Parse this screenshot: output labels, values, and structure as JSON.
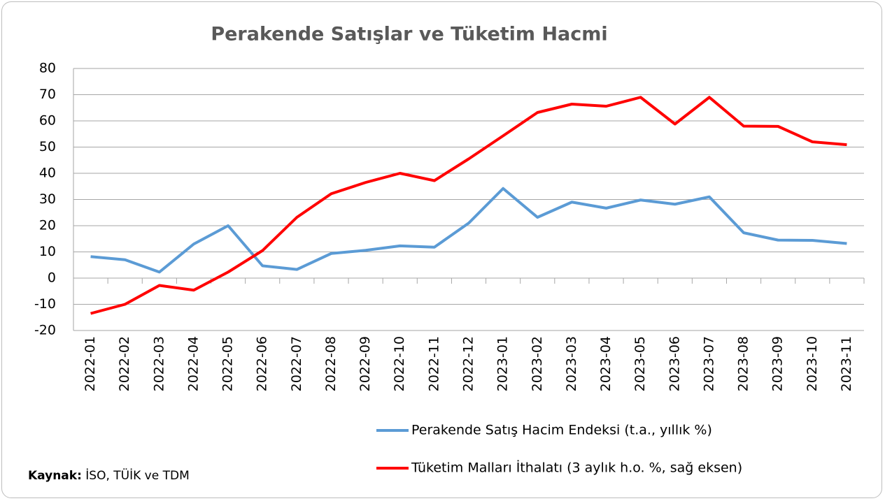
{
  "chart_data": {
    "type": "line",
    "title": "Perakende Satışlar ve Tüketim Hacmi",
    "categories": [
      "2022-01",
      "2022-02",
      "2022-03",
      "2022-04",
      "2022-05",
      "2022-06",
      "2022-07",
      "2022-08",
      "2022-09",
      "2022-10",
      "2022-11",
      "2022-12",
      "2023-01",
      "2023-02",
      "2023-03",
      "2023-04",
      "2023-05",
      "2023-06",
      "2023-07",
      "2023-08",
      "2023-09",
      "2023-10",
      "2023-11"
    ],
    "series": [
      {
        "name": "Perakende Satış Hacim Endeksi (t.a., yıllık %)",
        "color": "#5b9bd5",
        "values": [
          8.2,
          7,
          2.3,
          13,
          20,
          4.7,
          3.3,
          9.4,
          10.6,
          12.3,
          11.8,
          21,
          34.2,
          23.2,
          29,
          26.7,
          29.8,
          28.2,
          31,
          17.3,
          14.5,
          14.4,
          13.2
        ]
      },
      {
        "name": "Tüketim Malları İthalatı (3 aylık h.o. %, sağ eksen)",
        "color": "#ff0000",
        "values": [
          -13.5,
          -10,
          -2.8,
          -4.6,
          2.3,
          10.5,
          23.2,
          32.2,
          36.5,
          40,
          37.2,
          45.5,
          54.3,
          63.2,
          66.4,
          65.6,
          69,
          58.8,
          69,
          58,
          57.9,
          52,
          50.9
        ]
      }
    ],
    "ylim": [
      -20,
      80
    ],
    "yticks": [
      -20,
      -10,
      0,
      10,
      20,
      30,
      40,
      50,
      60,
      70,
      80
    ],
    "grid": true,
    "source": {
      "label": "Kaynak:",
      "text": "İSO, TÜİK ve TDM"
    }
  }
}
